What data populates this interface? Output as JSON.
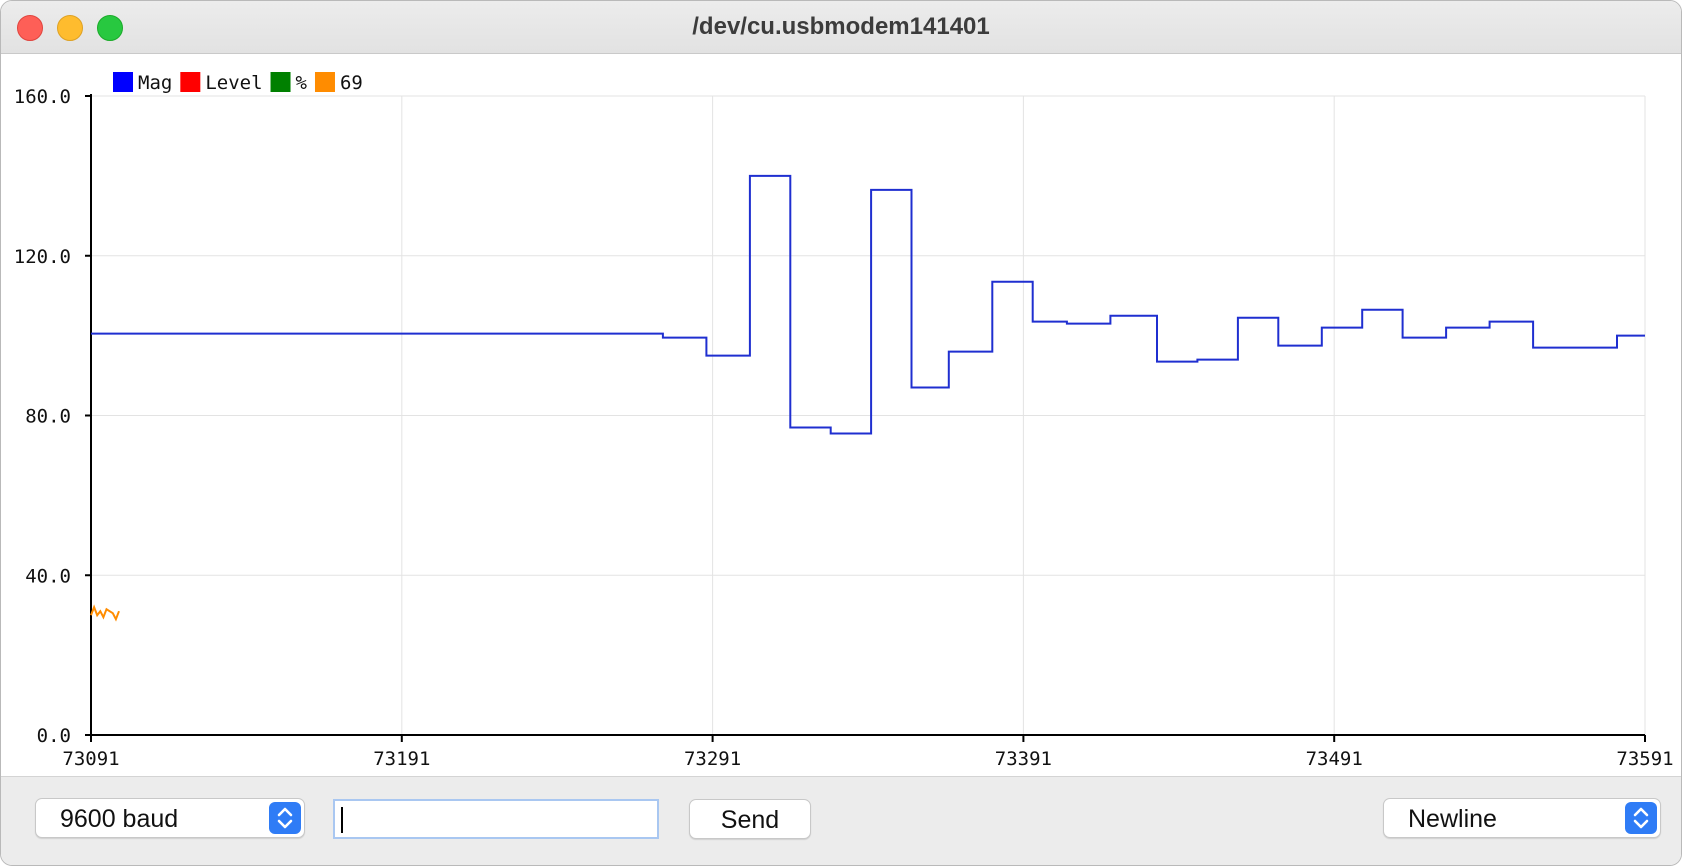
{
  "window": {
    "title": "/dev/cu.usbmodem141401"
  },
  "legend": [
    {
      "label": "Mag",
      "color": "#0000ff"
    },
    {
      "label": "Level",
      "color": "#ff0000"
    },
    {
      "label": "%",
      "color": "#008000"
    },
    {
      "label": "69",
      "color": "#ff8c00"
    }
  ],
  "chart_data": {
    "type": "line",
    "x_ticks": [
      "73091",
      "73191",
      "73291",
      "73391",
      "73491",
      "73591"
    ],
    "y_ticks": [
      "0.0",
      "40.0",
      "80.0",
      "120.0",
      "160.0"
    ],
    "xlim": [
      73091,
      73591
    ],
    "ylim": [
      0,
      160
    ],
    "grid": true,
    "legend_position": "top-left",
    "series": [
      {
        "name": "Mag",
        "color": "#1f2fd0",
        "step": true,
        "points": [
          [
            73091,
            100.5
          ],
          [
            73274,
            100.5
          ],
          [
            73275,
            99.5
          ],
          [
            73288,
            99.5
          ],
          [
            73289,
            95.0
          ],
          [
            73300,
            95.0
          ],
          [
            73303,
            140.0
          ],
          [
            73314,
            140.0
          ],
          [
            73316,
            77.0
          ],
          [
            73328,
            77.0
          ],
          [
            73329,
            75.5
          ],
          [
            73341,
            75.5
          ],
          [
            73342,
            136.5
          ],
          [
            73354,
            136.5
          ],
          [
            73355,
            87.0
          ],
          [
            73366,
            87.0
          ],
          [
            73367,
            96.0
          ],
          [
            73379,
            96.0
          ],
          [
            73381,
            113.5
          ],
          [
            73393,
            113.5
          ],
          [
            73394,
            103.5
          ],
          [
            73404,
            103.5
          ],
          [
            73405,
            103.0
          ],
          [
            73418,
            103.0
          ],
          [
            73419,
            105.0
          ],
          [
            73433,
            105.0
          ],
          [
            73434,
            93.5
          ],
          [
            73446,
            93.5
          ],
          [
            73447,
            94.0
          ],
          [
            73458,
            94.0
          ],
          [
            73460,
            104.5
          ],
          [
            73472,
            104.5
          ],
          [
            73473,
            97.5
          ],
          [
            73486,
            97.5
          ],
          [
            73487,
            102.0
          ],
          [
            73499,
            102.0
          ],
          [
            73500,
            106.5
          ],
          [
            73512,
            106.5
          ],
          [
            73513,
            99.5
          ],
          [
            73526,
            99.5
          ],
          [
            73527,
            102.0
          ],
          [
            73540,
            102.0
          ],
          [
            73541,
            103.5
          ],
          [
            73554,
            103.5
          ],
          [
            73555,
            97.0
          ],
          [
            73581,
            97.0
          ],
          [
            73582,
            100.0
          ],
          [
            73591,
            100.0
          ]
        ]
      },
      {
        "name": "69",
        "color": "#ff8c00",
        "step": false,
        "points": [
          [
            73091,
            30
          ],
          [
            73092,
            32
          ],
          [
            73093,
            30
          ],
          [
            73094,
            31
          ],
          [
            73095,
            29.5
          ],
          [
            73096,
            31.5
          ],
          [
            73097,
            31
          ],
          [
            73098,
            30.5
          ],
          [
            73099,
            29
          ],
          [
            73100,
            31
          ]
        ]
      }
    ]
  },
  "controls": {
    "baud_value": "9600 baud",
    "send_input_value": "",
    "send_label": "Send",
    "line_ending_value": "Newline"
  }
}
